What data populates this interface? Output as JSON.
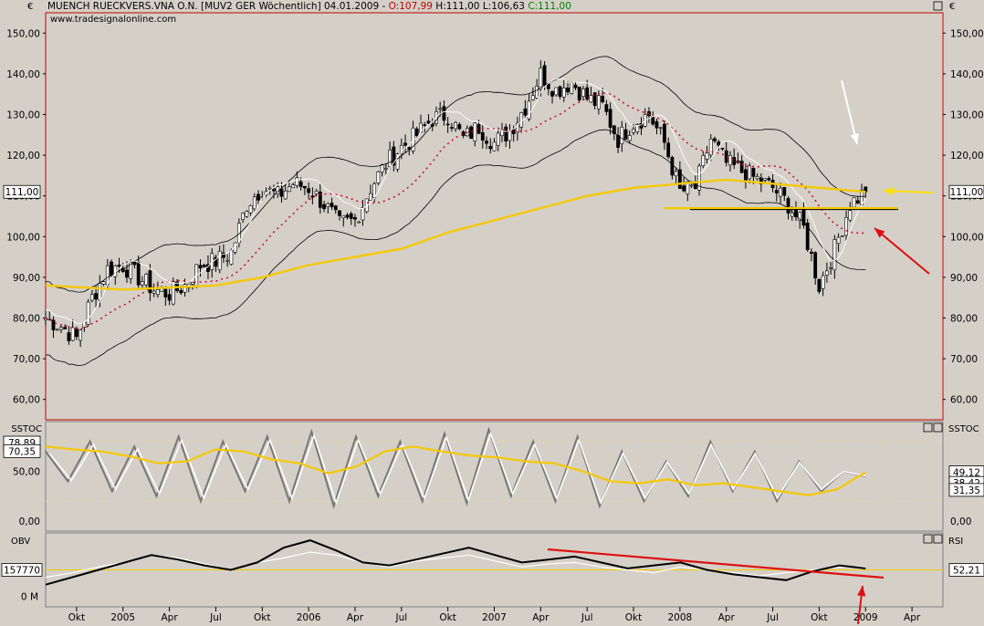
{
  "header": {
    "title": "MUENCH RUECKVERS.VNA O.N. [MUV2 GER  Wöchentlich] 04.01.2009 - ",
    "open": "O:107,99",
    "high": "H:111,00",
    "low": "L:106,63",
    "close": "C:111,00",
    "url": "www.tradesignalonline.com",
    "currency": "€"
  },
  "colors": {
    "background": "#d4d0c8",
    "frame_red": "#c00000",
    "sma_yellow": "#f5c800",
    "annotation_yellow": "#ffe000",
    "annotation_red": "#dd1010",
    "midband_red": "#d01030"
  },
  "icons": [
    "restore-icon",
    "close-icon",
    "menu-arrow-icon"
  ],
  "chart_data": [
    {
      "type": "candlestick",
      "name": "price",
      "y_axis_labels": [
        "150,00",
        "140,00",
        "130,00",
        "120,00",
        "110,00",
        "100,00",
        "90,00",
        "80,00",
        "70,00",
        "60,00"
      ],
      "ylim": [
        55,
        155
      ],
      "last_price_label": "111,00",
      "x_tick_labels": [
        "Okt",
        "2005",
        "Apr",
        "Jul",
        "Okt",
        "2006",
        "Apr",
        "Jul",
        "Okt",
        "2007",
        "Apr",
        "Jul",
        "Okt",
        "2008",
        "Apr",
        "Jul",
        "Okt",
        "2009",
        "Apr"
      ],
      "x_tick_dates": [
        "2004-10",
        "2005-01",
        "2005-04",
        "2005-07",
        "2005-10",
        "2006-01",
        "2006-04",
        "2006-07",
        "2006-10",
        "2007-01",
        "2007-04",
        "2007-07",
        "2007-10",
        "2008-01",
        "2008-04",
        "2008-07",
        "2008-10",
        "2009-01",
        "2009-04"
      ],
      "close_series": {
        "dates": [
          "2004-08",
          "2004-09",
          "2004-10",
          "2004-11",
          "2004-12",
          "2005-01",
          "2005-02",
          "2005-03",
          "2005-04",
          "2005-05",
          "2005-06",
          "2005-07",
          "2005-08",
          "2005-09",
          "2005-10",
          "2005-11",
          "2005-12",
          "2006-01",
          "2006-02",
          "2006-03",
          "2006-04",
          "2006-05",
          "2006-06",
          "2006-07",
          "2006-08",
          "2006-09",
          "2006-10",
          "2006-11",
          "2006-12",
          "2007-01",
          "2007-02",
          "2007-03",
          "2007-04",
          "2007-05",
          "2007-06",
          "2007-07",
          "2007-08",
          "2007-09",
          "2007-10",
          "2007-11",
          "2007-12",
          "2008-01",
          "2008-02",
          "2008-03",
          "2008-04",
          "2008-05",
          "2008-06",
          "2008-07",
          "2008-08",
          "2008-09",
          "2008-10",
          "2008-11",
          "2008-12",
          "2009-01"
        ],
        "values": [
          80,
          78,
          75,
          85,
          92,
          93,
          90,
          87,
          86,
          88,
          93,
          94,
          96,
          108,
          112,
          110,
          113,
          112,
          108,
          103,
          104,
          112,
          118,
          122,
          125,
          129,
          130,
          124,
          127,
          123,
          126,
          132,
          140,
          136,
          138,
          134,
          132,
          124,
          128,
          130,
          123,
          111,
          112,
          124,
          118,
          116,
          114,
          112,
          108,
          102,
          88,
          97,
          108,
          111
        ]
      },
      "sma_200": {
        "dates": [
          "2004-08",
          "2005-01",
          "2005-07",
          "2005-10",
          "2006-01",
          "2006-04",
          "2006-07",
          "2006-10",
          "2007-01",
          "2007-04",
          "2007-07",
          "2007-10",
          "2008-01",
          "2008-04",
          "2008-07",
          "2008-10",
          "2009-01"
        ],
        "values": [
          88,
          87,
          88,
          90,
          93,
          95,
          97,
          101,
          104,
          107,
          110,
          112,
          113,
          114,
          113,
          112,
          111
        ]
      },
      "annotations": [
        "white arrow at high",
        "yellow arrow at 111",
        "red arrow at 106",
        "horizontal yellow line at 107"
      ]
    },
    {
      "type": "line",
      "name": "SSTOC",
      "y_axis_labels": [
        "50,00",
        "0,00"
      ],
      "ylim": [
        -10,
        100
      ],
      "value_labels": [
        "78,89",
        "70,35",
        "49,12",
        "38,42",
        "31,35"
      ],
      "series": [
        {
          "name": "SSTOC",
          "values": [
            70,
            40,
            80,
            30,
            75,
            25,
            85,
            20,
            80,
            30,
            85,
            20,
            90,
            15,
            85,
            25,
            80,
            20,
            88,
            18,
            92,
            25,
            80,
            20,
            85,
            15,
            70,
            20,
            60,
            25,
            80,
            30,
            70,
            20,
            60,
            30,
            50,
            45
          ]
        },
        {
          "name": "",
          "values": [
            75,
            72,
            70,
            65,
            58,
            60,
            72,
            70,
            62,
            58,
            48,
            55,
            70,
            75,
            70,
            66,
            64,
            60,
            58,
            50,
            40,
            38,
            42,
            36,
            38,
            34,
            30,
            26,
            32,
            49
          ]
        }
      ]
    },
    {
      "type": "line",
      "name": "OBV",
      "left_labels": [
        "157770",
        "0 M"
      ],
      "right_label": "RSI",
      "right_value": "52,21",
      "series": [
        {
          "name": "OBV",
          "values": [
            -5,
            0,
            5,
            10,
            15,
            12,
            8,
            5,
            10,
            20,
            25,
            18,
            10,
            8,
            12,
            16,
            20,
            15,
            10,
            12,
            14,
            10,
            6,
            8,
            10,
            5,
            2,
            0,
            -2,
            4,
            8,
            6
          ]
        },
        {
          "name": "RSI",
          "values": [
            45,
            48,
            52,
            55,
            60,
            58,
            54,
            50,
            55,
            58,
            62,
            60,
            55,
            52,
            56,
            58,
            60,
            56,
            52,
            54,
            55,
            52,
            50,
            48,
            52,
            50,
            48,
            46,
            48,
            50,
            52,
            52
          ]
        }
      ]
    }
  ]
}
